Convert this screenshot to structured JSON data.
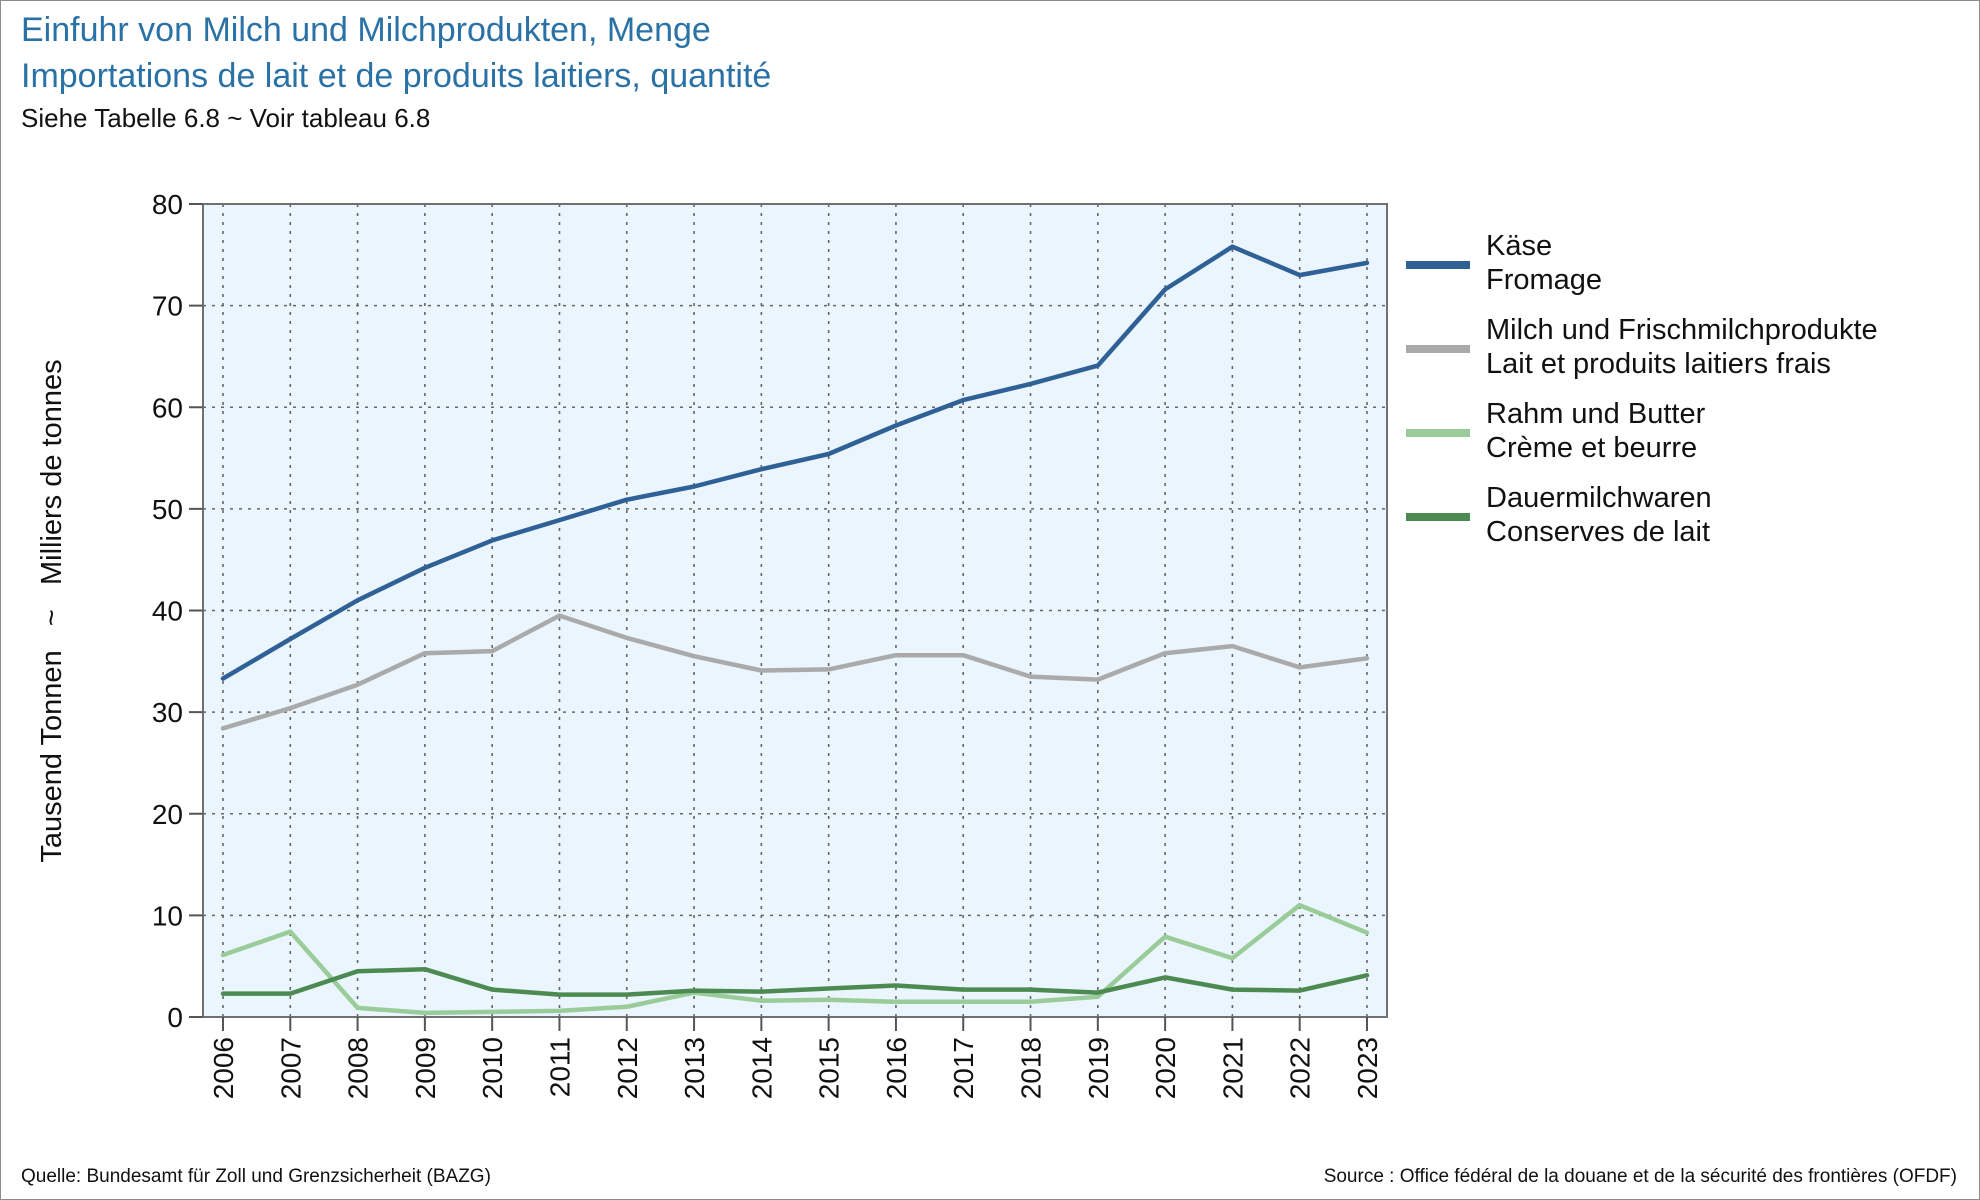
{
  "title_line1": "Einfuhr von Milch und Milchprodukten, Menge",
  "title_line2": "Importations de lait et de produits laitiers, quantité",
  "subtitle": "Siehe Tabelle 6.8   ~   Voir tableau 6.8",
  "source_left": "Quelle: Bundesamt für Zoll und Grenzsicherheit (BAZG)",
  "source_right": "Source : Office fédéral de la douane et de la sécurité des frontières (OFDF)",
  "chart_data": {
    "type": "line",
    "title": "Einfuhr von Milch und Milchprodukten, Menge",
    "subtitle": "Importations de lait et de produits laitiers, quantité",
    "ylabel": "Tausend Tonnen   ~   Milliers de tonnes",
    "xlabel": "",
    "ylim": [
      0,
      80
    ],
    "yticks": [
      0,
      10,
      20,
      30,
      40,
      50,
      60,
      70,
      80
    ],
    "grid": true,
    "legend_position": "right",
    "x": [
      "2006",
      "2007",
      "2008",
      "2009",
      "2010",
      "2011",
      "2012",
      "2013",
      "2014",
      "2015",
      "2016",
      "2017",
      "2018",
      "2019",
      "2020",
      "2021",
      "2022",
      "2023"
    ],
    "series": [
      {
        "name": "Käse",
        "name2": "Fromage",
        "color": "#2f6196",
        "values": [
          33.3,
          37.2,
          41.0,
          44.2,
          46.9,
          48.9,
          50.9,
          52.2,
          53.9,
          55.4,
          58.2,
          60.7,
          62.3,
          64.1,
          71.6,
          75.8,
          73.0,
          74.2
        ]
      },
      {
        "name": "Milch und Frischmilchprodukte",
        "name2": "Lait et produits laitiers frais",
        "color": "#aaaaaa",
        "values": [
          28.4,
          30.4,
          32.7,
          35.8,
          36.0,
          39.5,
          37.3,
          35.5,
          34.1,
          34.2,
          35.6,
          35.6,
          33.5,
          33.2,
          35.8,
          36.5,
          34.4,
          35.3
        ]
      },
      {
        "name": "Rahm und Butter",
        "name2": "Crème et beurre",
        "color": "#99cc99",
        "values": [
          6.1,
          8.4,
          0.9,
          0.4,
          0.5,
          0.6,
          1.0,
          2.4,
          1.6,
          1.7,
          1.5,
          1.5,
          1.5,
          2.0,
          7.9,
          5.8,
          11.0,
          8.3
        ]
      },
      {
        "name": "Dauermilchwaren",
        "name2": "Conserves de lait",
        "color": "#4d8a52",
        "values": [
          2.3,
          2.3,
          4.5,
          4.7,
          2.7,
          2.2,
          2.2,
          2.6,
          2.5,
          2.8,
          3.1,
          2.7,
          2.7,
          2.4,
          3.9,
          2.7,
          2.6,
          4.1
        ]
      }
    ]
  }
}
